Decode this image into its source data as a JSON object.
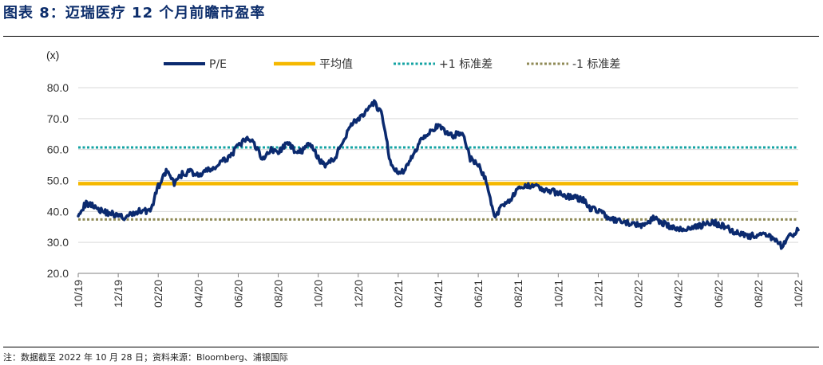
{
  "header": {
    "title": "图表 8：迈瑞医疗 12 个月前瞻市盈率"
  },
  "footer": {
    "note": "注：数据截至 2022 年 10 月 28 日；资料来源：Bloomberg、浦银国际"
  },
  "colors": {
    "pe": "#0b2a6f",
    "mean": "#f5b800",
    "plus1": "#14a3a3",
    "minus1": "#8f8a56",
    "grid": "#d9d9d9"
  },
  "chart_data": {
    "type": "line",
    "unit_label": "(x)",
    "ylim": [
      20,
      80
    ],
    "yticks": [
      "20.0",
      "30.0",
      "40.0",
      "50.0",
      "60.0",
      "70.0",
      "80.0"
    ],
    "xticks": [
      "10/19",
      "12/19",
      "02/20",
      "04/20",
      "06/20",
      "08/20",
      "10/20",
      "12/20",
      "02/21",
      "04/21",
      "06/21",
      "08/21",
      "10/21",
      "12/21",
      "02/22",
      "04/22",
      "06/22",
      "08/22",
      "10/22"
    ],
    "grid": true,
    "legend_position": "top",
    "series": [
      {
        "name": "P/E",
        "style": "solid",
        "x": [
          0,
          0.2,
          0.4,
          0.6,
          0.8,
          1.0,
          1.2,
          1.4,
          1.6,
          1.8,
          2.0,
          2.2,
          2.4,
          2.6,
          2.8,
          3.0,
          3.2,
          3.4,
          3.6,
          3.8,
          4.0,
          4.2,
          4.4,
          4.6,
          4.8,
          5.0,
          5.2,
          5.4,
          5.6,
          5.8,
          6.0,
          6.2,
          6.4,
          6.6,
          6.8,
          7.0,
          7.2,
          7.4,
          7.6,
          7.8,
          8.0,
          8.2,
          8.4,
          8.6,
          8.8,
          9.0,
          9.2,
          9.4,
          9.6,
          9.8,
          10.0,
          10.2,
          10.4,
          10.6,
          10.8,
          11.0,
          11.2,
          11.4,
          11.6,
          11.8,
          12.0,
          12.2,
          12.4,
          12.6,
          12.8,
          13.0,
          13.2,
          13.4,
          13.6,
          13.8,
          14.0,
          14.2,
          14.4,
          14.6,
          14.8,
          15.0,
          15.2,
          15.4,
          15.6,
          15.8,
          16.0,
          16.2,
          16.4,
          16.6,
          16.8,
          17.0,
          17.2,
          17.4,
          17.6,
          17.8,
          18.0
        ],
        "y": [
          39.5,
          42.5,
          42.0,
          40.0,
          39.5,
          38.5,
          38.0,
          39.5,
          40.5,
          40.0,
          48.0,
          53.0,
          49.0,
          52.0,
          53.0,
          51.5,
          53.0,
          54.0,
          56.0,
          58.0,
          61.0,
          63.5,
          62.0,
          57.0,
          60.0,
          59.0,
          62.0,
          60.0,
          59.5,
          62.0,
          57.0,
          55.0,
          57.0,
          62.0,
          68.0,
          70.0,
          72.0,
          75.0,
          71.0,
          56.0,
          52.0,
          54.0,
          59.0,
          64.0,
          66.0,
          67.5,
          65.5,
          64.5,
          66.0,
          57.0,
          55.0,
          50.0,
          38.0,
          42.0,
          44.0,
          47.0,
          48.0,
          49.0,
          47.0,
          46.5,
          46.0,
          45.0,
          44.5,
          44.0,
          41.0,
          40.5,
          38.5,
          37.0,
          36.5,
          36.0,
          35.5,
          36.0,
          38.0,
          36.5,
          35.0,
          34.0,
          34.5,
          35.0,
          35.5,
          36.5,
          36.0,
          35.0,
          33.5,
          33.0,
          32.0,
          32.5,
          32.0,
          31.5,
          28.5,
          32.0,
          34.0
        ]
      },
      {
        "name": "平均值",
        "style": "solid",
        "value": 49.0
      },
      {
        "name": "+1 标准差",
        "style": "dotted",
        "value": 60.7
      },
      {
        "name": "-1 标准差",
        "style": "dotted",
        "value": 37.4
      }
    ]
  }
}
